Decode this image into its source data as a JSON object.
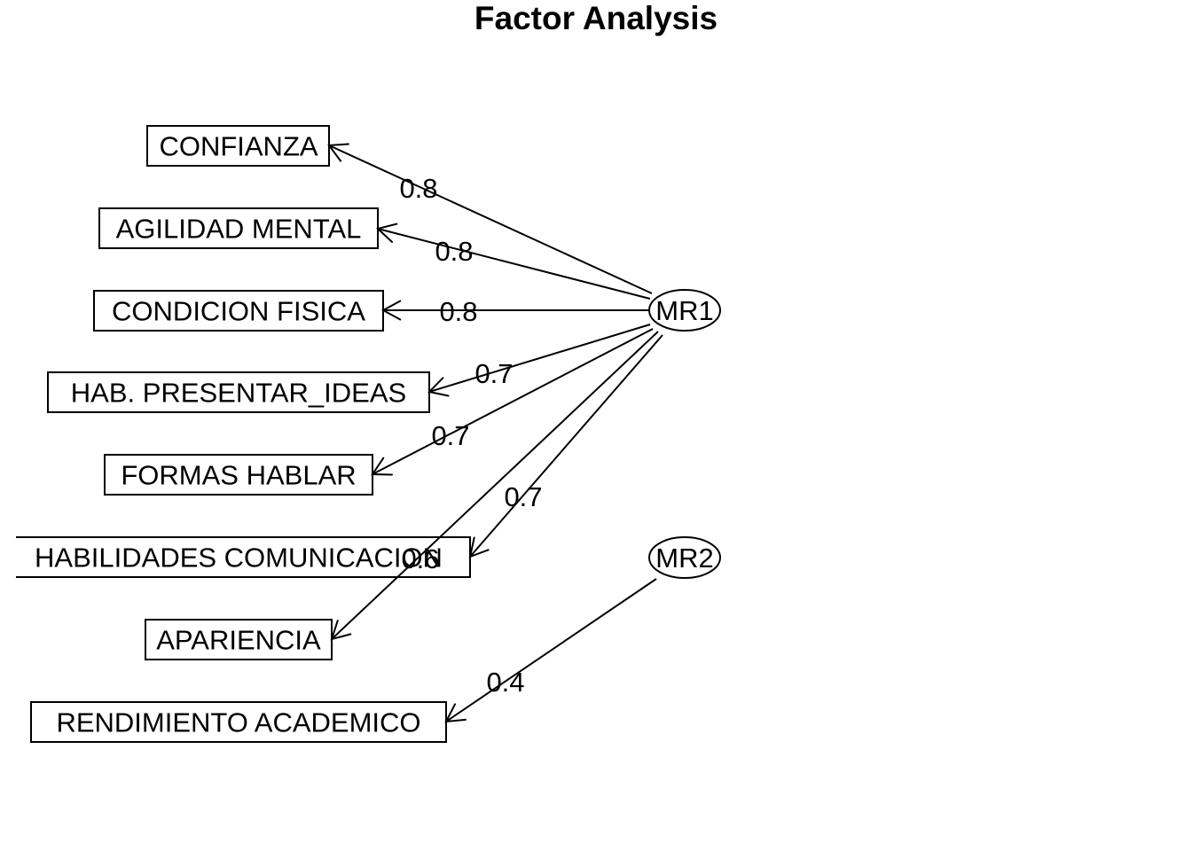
{
  "title": "Factor Analysis",
  "colors": {
    "background": "#ffffff",
    "ink": "#000000"
  },
  "factors": [
    {
      "id": "MR1",
      "label": "MR1"
    },
    {
      "id": "MR2",
      "label": "MR2"
    }
  ],
  "variables": [
    {
      "id": "v1",
      "label": "CONFIANZA"
    },
    {
      "id": "v2",
      "label": "AGILIDAD MENTAL"
    },
    {
      "id": "v3",
      "label": "CONDICION FISICA"
    },
    {
      "id": "v4",
      "label": "HAB. PRESENTAR_IDEAS"
    },
    {
      "id": "v5",
      "label": "FORMAS HABLAR"
    },
    {
      "id": "v6",
      "label": "HABILIDADES COMUNICACION"
    },
    {
      "id": "v7",
      "label": "APARIENCIA"
    },
    {
      "id": "v8",
      "label": "RENDIMIENTO ACADEMICO"
    }
  ],
  "loadings": [
    {
      "from": "MR1",
      "to": "v1",
      "value": "0.8"
    },
    {
      "from": "MR1",
      "to": "v2",
      "value": "0.8"
    },
    {
      "from": "MR1",
      "to": "v3",
      "value": "0.8"
    },
    {
      "from": "MR1",
      "to": "v4",
      "value": "0.7"
    },
    {
      "from": "MR1",
      "to": "v5",
      "value": "0.7"
    },
    {
      "from": "MR1",
      "to": "v6",
      "value": "0.7"
    },
    {
      "from": "MR1",
      "to": "v7",
      "value": "0.6"
    },
    {
      "from": "MR2",
      "to": "v8",
      "value": "0.4"
    }
  ]
}
